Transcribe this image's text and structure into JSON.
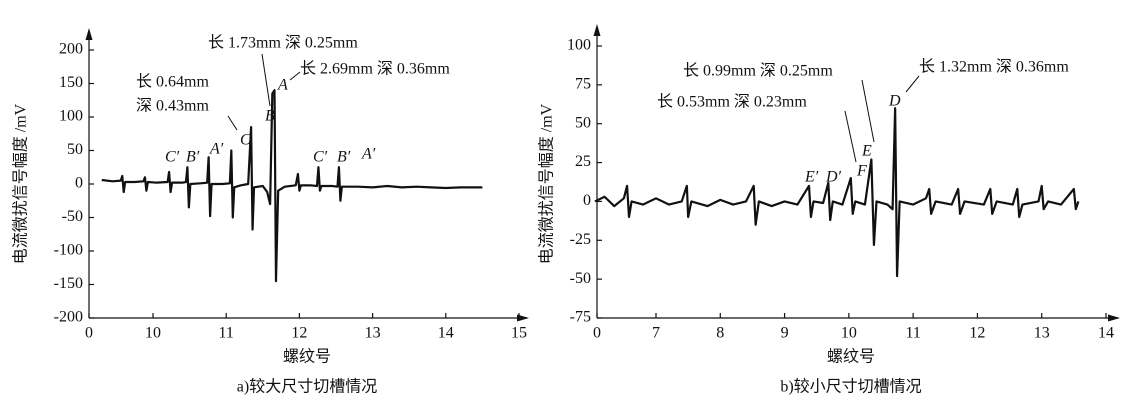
{
  "chart_data": [
    {
      "type": "line",
      "ylabel": "电流微扰信号幅度 /mV",
      "xlabel": "螺纹号",
      "caption": "a)较大尺寸切槽情况",
      "annotations": [
        "长 1.73mm 深 0.25mm",
        "长 2.69mm 深 0.36mm",
        "长 0.64mm",
        "深 0.43mm"
      ],
      "point_labels": [
        "C′",
        "B′",
        "A′",
        "C",
        "B",
        "A",
        "C′",
        "B′",
        "A′"
      ],
      "xlim": [
        0,
        15
      ],
      "xticks": [
        0,
        10,
        11,
        12,
        13,
        14,
        15
      ],
      "x_axis_break": true,
      "ylim": [
        -200,
        200
      ],
      "yticks": [
        -200,
        -150,
        -100,
        -50,
        0,
        50,
        100,
        150,
        200
      ],
      "x": [
        9.3,
        9.45,
        9.56,
        9.58,
        9.6,
        9.62,
        9.75,
        9.87,
        9.89,
        9.91,
        9.93,
        10.05,
        10.2,
        10.22,
        10.24,
        10.26,
        10.4,
        10.45,
        10.47,
        10.49,
        10.51,
        10.65,
        10.74,
        10.76,
        10.78,
        10.8,
        10.95,
        11.05,
        11.07,
        11.09,
        11.11,
        11.2,
        11.3,
        11.34,
        11.36,
        11.38,
        11.5,
        11.56,
        11.6,
        11.63,
        11.66,
        11.68,
        11.71,
        11.8,
        11.95,
        11.98,
        12.0,
        12.02,
        12.15,
        12.24,
        12.26,
        12.28,
        12.3,
        12.45,
        12.52,
        12.54,
        12.56,
        12.58,
        12.8,
        13.0,
        13.2,
        13.4,
        13.6,
        13.8,
        14.0,
        14.2,
        14.5
      ],
      "series": [
        {
          "color": "#111111",
          "values": [
            6,
            4,
            5,
            12,
            -12,
            3,
            3,
            4,
            10,
            -10,
            3,
            2,
            3,
            18,
            -12,
            2,
            2,
            3,
            25,
            -35,
            0,
            1,
            2,
            40,
            -48,
            0,
            0,
            1,
            50,
            -50,
            -5,
            -2,
            0,
            85,
            -68,
            -5,
            -3,
            -12,
            -30,
            135,
            140,
            -145,
            -10,
            -4,
            -2,
            15,
            -10,
            -2,
            -2,
            -3,
            25,
            -10,
            -3,
            -3,
            -4,
            25,
            -25,
            -4,
            -4,
            -5,
            -3,
            -5,
            -4,
            -5,
            -6,
            -5,
            -5
          ]
        }
      ]
    },
    {
      "type": "line",
      "ylabel": "电流微扰信号幅度 /mV",
      "xlabel": "螺纹号",
      "caption": "b)较小尺寸切槽情况",
      "annotations": [
        "长 0.99mm 深 0.25mm",
        "长 0.53mm 深 0.23mm",
        "长 1.32mm 深 0.36mm"
      ],
      "point_labels": [
        "E′",
        "D′",
        "F",
        "E",
        "D"
      ],
      "xlim": [
        0,
        14
      ],
      "xticks": [
        0,
        7,
        8,
        9,
        10,
        11,
        12,
        13,
        14
      ],
      "x_axis_break": true,
      "ylim": [
        -75,
        100
      ],
      "yticks": [
        -75,
        -50,
        -25,
        0,
        25,
        50,
        75,
        100
      ],
      "x": [
        6.05,
        6.2,
        6.35,
        6.5,
        6.55,
        6.58,
        6.62,
        6.8,
        7.0,
        7.2,
        7.4,
        7.48,
        7.5,
        7.55,
        7.8,
        8.0,
        8.2,
        8.4,
        8.52,
        8.55,
        8.6,
        8.8,
        9.0,
        9.2,
        9.38,
        9.41,
        9.45,
        9.6,
        9.68,
        9.71,
        9.75,
        9.9,
        10.03,
        10.06,
        10.1,
        10.25,
        10.35,
        10.39,
        10.43,
        10.6,
        10.68,
        10.72,
        10.75,
        10.79,
        11.0,
        11.2,
        11.25,
        11.28,
        11.35,
        11.6,
        11.7,
        11.73,
        11.8,
        12.1,
        12.2,
        12.23,
        12.3,
        12.55,
        12.62,
        12.65,
        12.7,
        12.95,
        13.0,
        13.03,
        13.1,
        13.3,
        13.5,
        13.53,
        13.57
      ],
      "series": [
        {
          "color": "#111111",
          "values": [
            0,
            3,
            -3,
            2,
            10,
            -10,
            0,
            -2,
            2,
            -2,
            0,
            10,
            -10,
            0,
            -3,
            1,
            -2,
            0,
            10,
            -15,
            0,
            -3,
            0,
            -2,
            10,
            -10,
            0,
            -1,
            12,
            -12,
            0,
            -2,
            15,
            -8,
            0,
            -2,
            27,
            -28,
            0,
            -2,
            -5,
            60,
            -48,
            0,
            -2,
            2,
            8,
            -8,
            0,
            -2,
            8,
            -8,
            0,
            -2,
            8,
            -8,
            0,
            -2,
            8,
            -10,
            -2,
            0,
            10,
            -5,
            0,
            -2,
            8,
            -5,
            0
          ]
        }
      ]
    }
  ]
}
